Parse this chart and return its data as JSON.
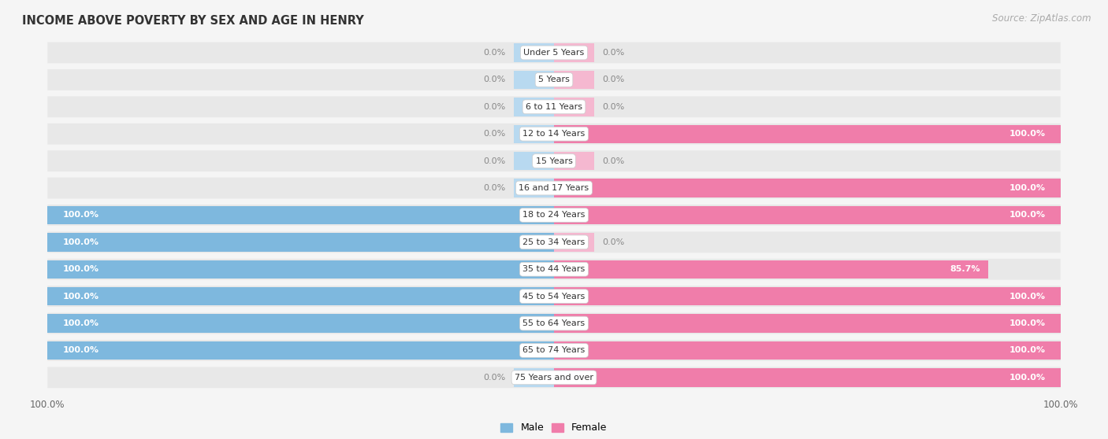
{
  "title": "INCOME ABOVE POVERTY BY SEX AND AGE IN HENRY",
  "source": "Source: ZipAtlas.com",
  "categories": [
    "Under 5 Years",
    "5 Years",
    "6 to 11 Years",
    "12 to 14 Years",
    "15 Years",
    "16 and 17 Years",
    "18 to 24 Years",
    "25 to 34 Years",
    "35 to 44 Years",
    "45 to 54 Years",
    "55 to 64 Years",
    "65 to 74 Years",
    "75 Years and over"
  ],
  "male_values": [
    0.0,
    0.0,
    0.0,
    0.0,
    0.0,
    0.0,
    100.0,
    100.0,
    100.0,
    100.0,
    100.0,
    100.0,
    0.0
  ],
  "female_values": [
    0.0,
    0.0,
    0.0,
    100.0,
    0.0,
    100.0,
    100.0,
    0.0,
    85.7,
    100.0,
    100.0,
    100.0,
    100.0
  ],
  "male_color": "#7eb8de",
  "female_color": "#f07daa",
  "male_stub_color": "#b8d9f0",
  "female_stub_color": "#f5b8d0",
  "male_label": "Male",
  "female_label": "Female",
  "row_bg_color": "#e8e8e8",
  "fig_bg_color": "#f5f5f5",
  "bar_height": 0.68,
  "stub_size": 8.0,
  "title_fontsize": 10.5,
  "source_fontsize": 8.5,
  "label_fontsize": 8.0,
  "cat_fontsize": 8.0,
  "tick_fontsize": 8.5,
  "value_color_inside": "white",
  "value_color_outside": "#888888"
}
